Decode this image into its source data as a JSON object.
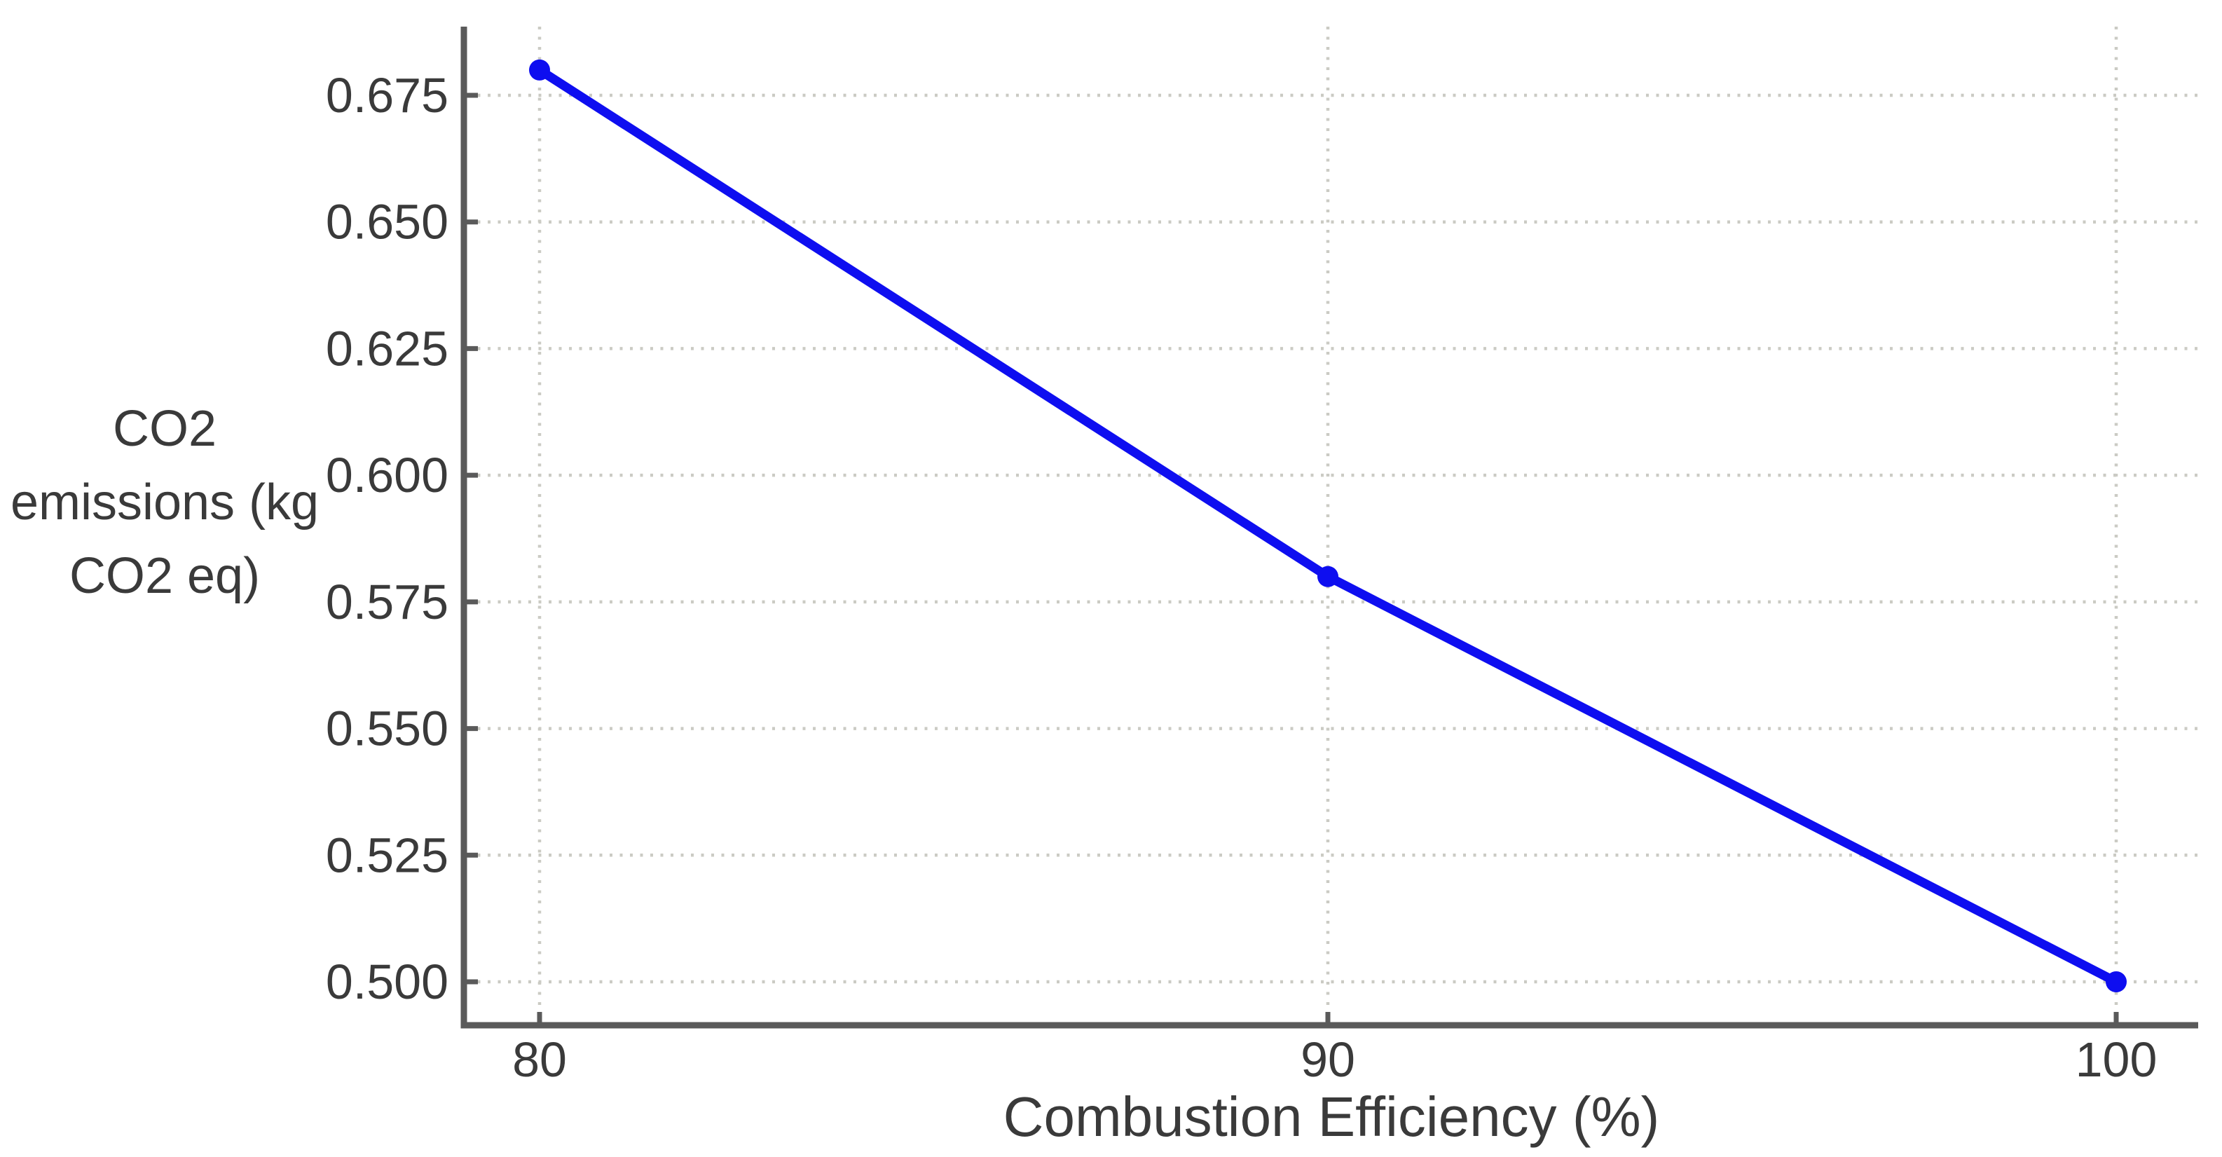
{
  "chart_data": {
    "type": "line",
    "title": "",
    "xlabel": "Combustion Efficiency (%)",
    "ylabel": "CO2 emissions (kg CO2 eq)",
    "ylabel_display": "CO2\nemissions (kg\nCO2 eq)",
    "x": [
      80,
      90,
      100
    ],
    "series": [
      {
        "name": "CO2 emissions",
        "values": [
          0.68,
          0.58,
          0.5
        ]
      }
    ],
    "xticks": [
      80,
      90,
      100
    ],
    "xtick_labels": [
      "80",
      "90",
      "100"
    ],
    "yticks": [
      0.5,
      0.525,
      0.55,
      0.575,
      0.6,
      0.625,
      0.65,
      0.675
    ],
    "ytick_labels": [
      "0.500",
      "0.525",
      "0.550",
      "0.575",
      "0.600",
      "0.625",
      "0.650",
      "0.675"
    ],
    "xlim": [
      79.0,
      101.1
    ],
    "ylim": [
      0.492,
      0.688
    ],
    "grid": true,
    "grid_style": "dotted",
    "legend": "none",
    "marker": "circle",
    "colors": {
      "line": "#0e0ef0",
      "marker": "#0e0ef0",
      "grid": "#cbcbc4",
      "axis": "#5a5a5a",
      "text": "#3a3a3a",
      "background": "#ffffff"
    }
  }
}
